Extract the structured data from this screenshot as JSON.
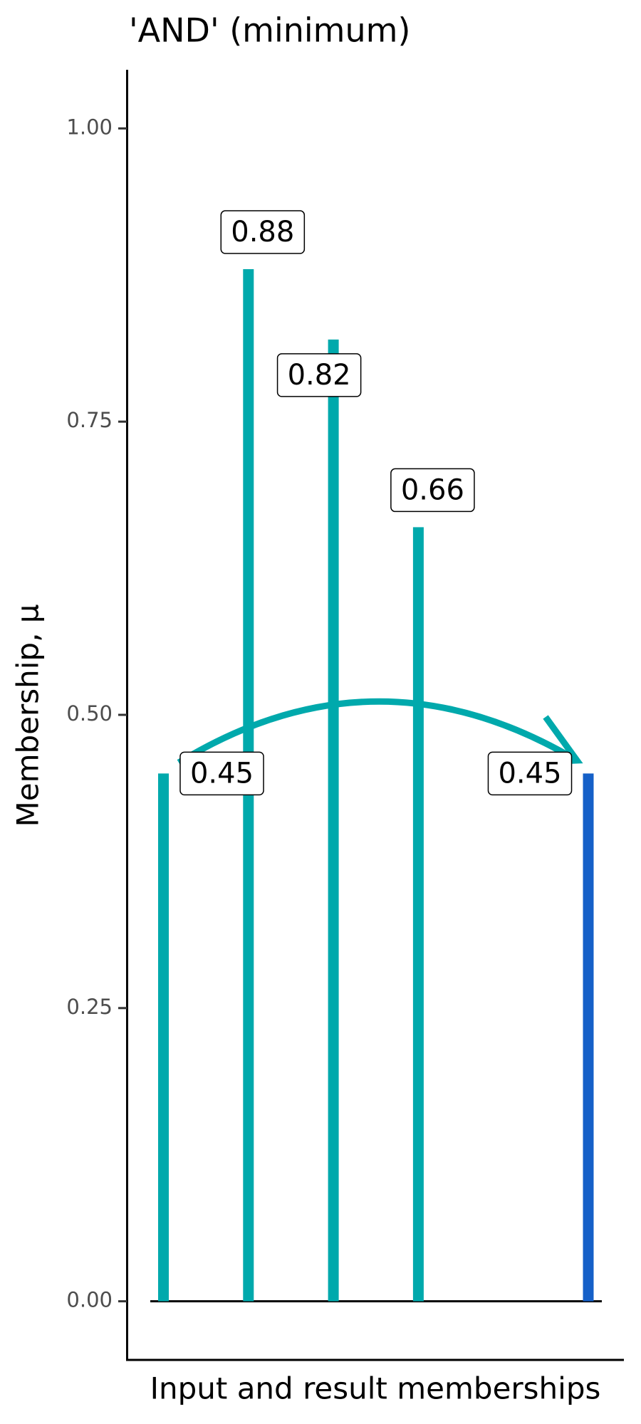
{
  "chart_data": {
    "type": "bar",
    "title": "'AND' (minimum)",
    "x_label": "Input and result memberships",
    "y_label": "Membership, μ",
    "categories": [
      null,
      null,
      null,
      null,
      null,
      null
    ],
    "series": [
      {
        "name": null,
        "color": "#00a9ac",
        "values": [
          0.45,
          0.88,
          0.82,
          0.66,
          null,
          null
        ]
      },
      {
        "name": null,
        "color": "#1560c8",
        "values": [
          null,
          null,
          null,
          null,
          null,
          0.45
        ]
      }
    ],
    "ylim": [
      -0.05,
      1.05
    ],
    "yticks": [
      {
        "value": 0,
        "label": "0.00"
      },
      {
        "value": 0.25,
        "label": "0.25"
      },
      {
        "value": 0.5,
        "label": "0.50"
      },
      {
        "value": 0.75,
        "label": "0.75"
      },
      {
        "value": 1,
        "label": "1.00"
      }
    ],
    "grid": false
  }
}
